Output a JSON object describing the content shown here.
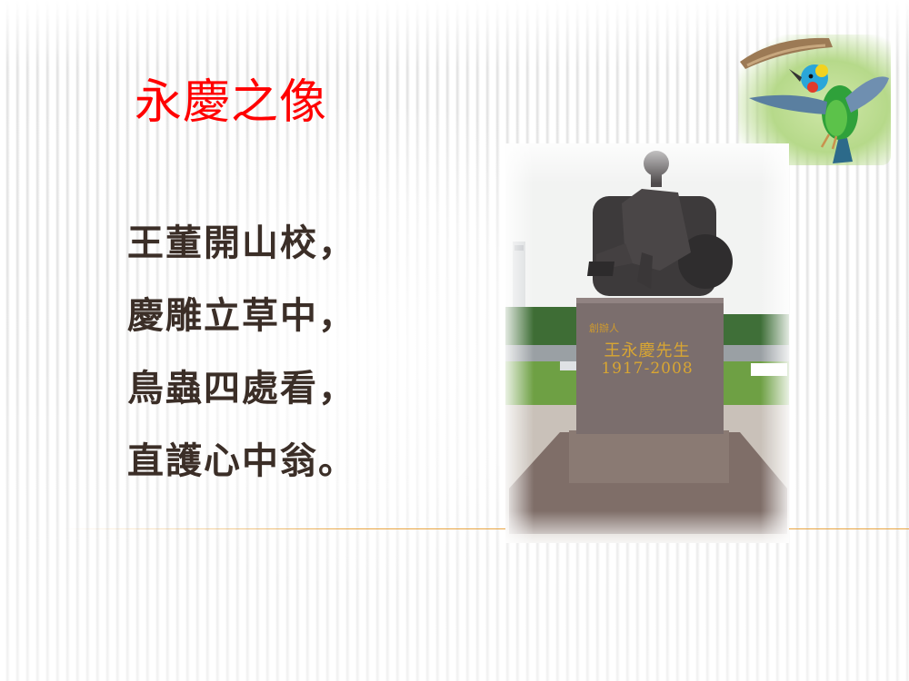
{
  "slide": {
    "title": "永慶之像",
    "poem": [
      "王董開山校，",
      "慶雕立草中，",
      "鳥蟲四處看，",
      "直護心中翁。"
    ]
  },
  "statue_photo": {
    "plaque_label": "創辦人",
    "plaque_name": "王永慶先生",
    "plaque_years": "1917-2008"
  },
  "colors": {
    "title": "#ff0000",
    "poem": "#3b2e27",
    "divider": "#e8a542"
  }
}
